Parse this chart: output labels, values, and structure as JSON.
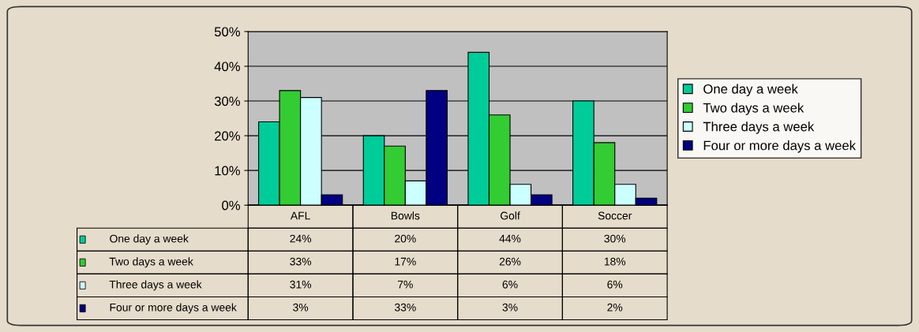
{
  "chart_data": {
    "type": "bar",
    "categories": [
      "AFL",
      "Bowls",
      "Golf",
      "Soccer"
    ],
    "series": [
      {
        "name": "One day a week",
        "color": "#00cc99",
        "values": [
          24,
          20,
          44,
          30
        ],
        "value_labels": [
          "24%",
          "20%",
          "44%",
          "30%"
        ]
      },
      {
        "name": "Two days a week",
        "color": "#33cc33",
        "values": [
          33,
          17,
          26,
          18
        ],
        "value_labels": [
          "33%",
          "17%",
          "26%",
          "18%"
        ]
      },
      {
        "name": "Three days a week",
        "color": "#ccffff",
        "values": [
          31,
          7,
          6,
          6
        ],
        "value_labels": [
          "31%",
          "7%",
          "6%",
          "6%"
        ]
      },
      {
        "name": "Four or more days a week",
        "color": "#000080",
        "values": [
          3,
          33,
          3,
          2
        ],
        "value_labels": [
          "3%",
          "33%",
          "3%",
          "2%"
        ]
      }
    ],
    "ylim": [
      0,
      50
    ],
    "yticks": [
      {
        "value": 0,
        "label": "0%"
      },
      {
        "value": 10,
        "label": "10%"
      },
      {
        "value": 20,
        "label": "20%"
      },
      {
        "value": 30,
        "label": "30%"
      },
      {
        "value": 40,
        "label": "40%"
      },
      {
        "value": 50,
        "label": "50%"
      }
    ],
    "grid": "y",
    "legend": "right"
  }
}
